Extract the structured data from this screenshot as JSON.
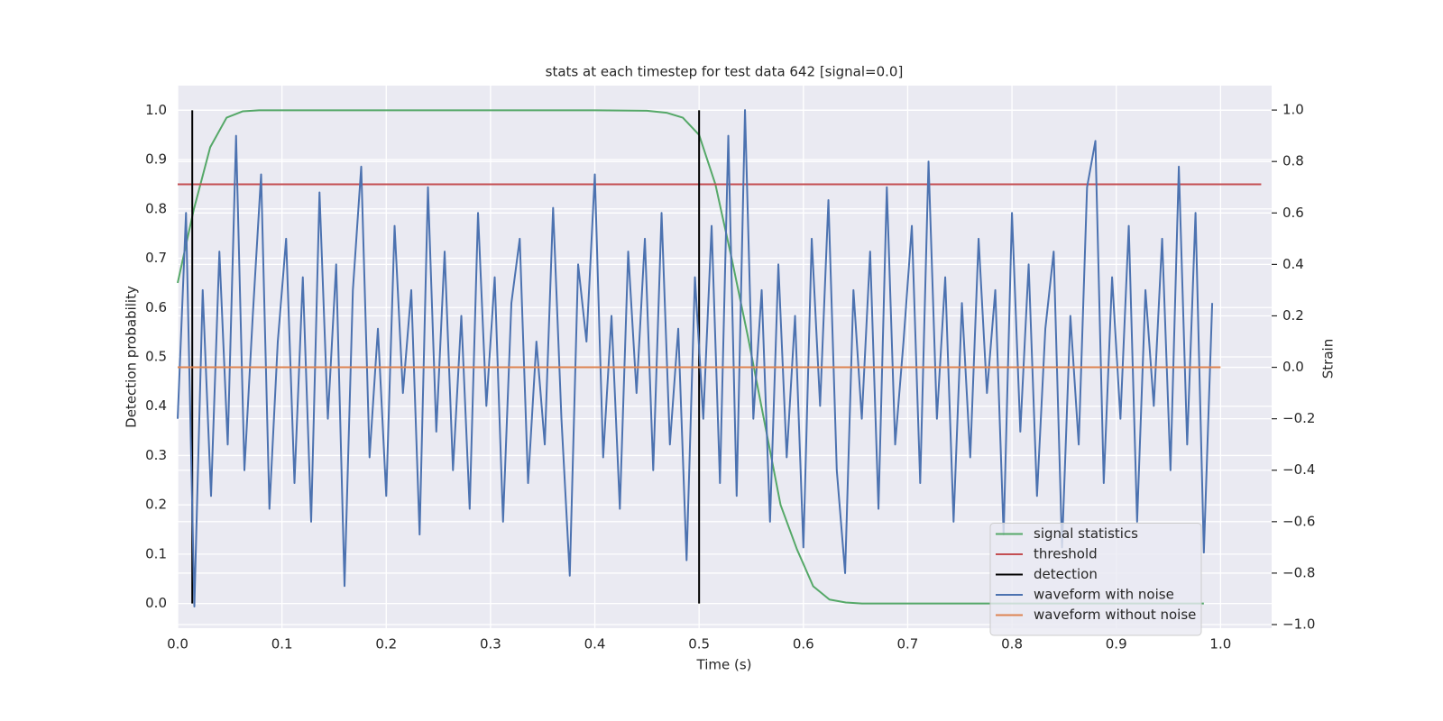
{
  "chart_data": {
    "type": "line",
    "title": "stats at each timestep for test data 642 [signal=0.0]",
    "xlabel": "Time (s)",
    "ylabel": "Detection probability",
    "y2label": "Strain",
    "xlim": [
      0,
      1.049
    ],
    "ylim": [
      -0.05,
      1.05
    ],
    "y2lim": [
      -1.014,
      1.095
    ],
    "xticks": [
      {
        "value": 0,
        "label": "0.0"
      },
      0.1,
      0.2,
      0.3,
      0.4,
      0.5,
      0.6,
      0.7,
      0.8,
      0.9,
      {
        "value": 1,
        "label": "1.0"
      }
    ],
    "yticks": [
      {
        "value": 0,
        "label": "0.0"
      },
      0.1,
      0.2,
      0.3,
      0.4,
      0.5,
      0.6,
      0.7,
      0.8,
      0.9,
      {
        "value": 1,
        "label": "1.0"
      }
    ],
    "y2ticks": [
      {
        "value": -1,
        "label": "−1.0"
      },
      {
        "value": -0.8,
        "label": "−0.8"
      },
      {
        "value": -0.6,
        "label": "−0.6"
      },
      {
        "value": -0.4,
        "label": "−0.4"
      },
      {
        "value": -0.2,
        "label": "−0.2"
      },
      {
        "value": 0,
        "label": "0.0"
      },
      0.2,
      0.4,
      0.6,
      0.8,
      {
        "value": 1,
        "label": "1.0"
      }
    ],
    "grid": true,
    "legend": "lower right",
    "series": [
      {
        "name": "signal statistics",
        "color": "#55a868",
        "x": [
          0,
          0.0156,
          0.0312,
          0.0469,
          0.0625,
          0.0781,
          0.1,
          0.2,
          0.3,
          0.4,
          0.45,
          0.4688,
          0.4844,
          0.5,
          0.5156,
          0.5312,
          0.5469,
          0.5625,
          0.5781,
          0.5938,
          0.6094,
          0.625,
          0.6406,
          0.6562,
          0.7,
          0.8,
          0.9,
          0.984
        ],
        "values": [
          0.65,
          0.8,
          0.925,
          0.985,
          0.998,
          1.0,
          1.0,
          1.0,
          1.0,
          1.0,
          0.999,
          0.995,
          0.985,
          0.95,
          0.85,
          0.7,
          0.54,
          0.37,
          0.2,
          0.11,
          0.035,
          0.008,
          0.002,
          0.0,
          0.0,
          0.0,
          0.0,
          0.0
        ]
      },
      {
        "name": "threshold",
        "color": "#c44e52",
        "x": [
          0,
          1.039
        ],
        "values": [
          0.85,
          0.85
        ]
      },
      {
        "name": "detection",
        "color": "#000000",
        "segments": true,
        "x": [
          0.014,
          0.014,
          0.5,
          0.5
        ],
        "values": [
          0,
          1,
          0,
          1
        ]
      },
      {
        "name": "waveform with noise",
        "color": "#4c72b0",
        "axis": "y2",
        "x": [
          0,
          0.008,
          0.016,
          0.024,
          0.032,
          0.04,
          0.048,
          0.056,
          0.064,
          0.072,
          0.08,
          0.088,
          0.096,
          0.104,
          0.112,
          0.12,
          0.128,
          0.136,
          0.144,
          0.152,
          0.16,
          0.168,
          0.176,
          0.184,
          0.192,
          0.2,
          0.208,
          0.216,
          0.224,
          0.232,
          0.24,
          0.248,
          0.256,
          0.264,
          0.272,
          0.28,
          0.288,
          0.296,
          0.304,
          0.312,
          0.32,
          0.328,
          0.336,
          0.344,
          0.352,
          0.36,
          0.368,
          0.376,
          0.384,
          0.392,
          0.4,
          0.408,
          0.416,
          0.424,
          0.432,
          0.44,
          0.448,
          0.456,
          0.464,
          0.472,
          0.48,
          0.488,
          0.496,
          0.504,
          0.512,
          0.52,
          0.528,
          0.536,
          0.544,
          0.552,
          0.56,
          0.568,
          0.576,
          0.584,
          0.592,
          0.6,
          0.608,
          0.616,
          0.624,
          0.632,
          0.64,
          0.648,
          0.656,
          0.664,
          0.672,
          0.68,
          0.688,
          0.696,
          0.704,
          0.712,
          0.72,
          0.728,
          0.736,
          0.744,
          0.752,
          0.76,
          0.768,
          0.776,
          0.784,
          0.792,
          0.8,
          0.808,
          0.816,
          0.824,
          0.832,
          0.84,
          0.848,
          0.856,
          0.864,
          0.872,
          0.88,
          0.888,
          0.896,
          0.904,
          0.912,
          0.92,
          0.928,
          0.936,
          0.944,
          0.952,
          0.96,
          0.968,
          0.976,
          0.984,
          0.992
        ],
        "values": [
          -0.2,
          0.6,
          -0.93,
          0.3,
          -0.5,
          0.45,
          -0.3,
          0.9,
          -0.4,
          0.2,
          0.75,
          -0.55,
          0.1,
          0.5,
          -0.45,
          0.35,
          -0.6,
          0.68,
          -0.2,
          0.4,
          -0.85,
          0.3,
          0.78,
          -0.35,
          0.15,
          -0.5,
          0.55,
          -0.1,
          0.3,
          -0.65,
          0.7,
          -0.25,
          0.45,
          -0.4,
          0.2,
          -0.55,
          0.6,
          -0.15,
          0.35,
          -0.6,
          0.25,
          0.5,
          -0.45,
          0.1,
          -0.3,
          0.62,
          -0.2,
          -0.81,
          0.4,
          0.1,
          0.75,
          -0.35,
          0.2,
          -0.55,
          0.45,
          -0.1,
          0.5,
          -0.4,
          0.6,
          -0.3,
          0.15,
          -0.75,
          0.35,
          -0.2,
          0.55,
          -0.45,
          0.9,
          -0.5,
          1.0,
          -0.2,
          0.3,
          -0.6,
          0.4,
          -0.35,
          0.2,
          -0.7,
          0.5,
          -0.15,
          0.65,
          -0.4,
          -0.8,
          0.3,
          -0.2,
          0.45,
          -0.55,
          0.7,
          -0.3,
          0.1,
          0.55,
          -0.45,
          0.8,
          -0.2,
          0.35,
          -0.6,
          0.25,
          -0.35,
          0.5,
          -0.1,
          0.3,
          -0.65,
          0.6,
          -0.25,
          0.4,
          -0.5,
          0.15,
          0.45,
          -0.7,
          0.2,
          -0.3,
          0.7,
          0.88,
          -0.45,
          0.35,
          -0.2,
          0.55,
          -0.6,
          0.3,
          -0.15,
          0.5,
          -0.4,
          0.78,
          -0.3,
          0.6,
          -0.72,
          0.25
        ]
      },
      {
        "name": "waveform without noise",
        "color": "#dd8452",
        "axis": "y2",
        "x": [
          0,
          1.0
        ],
        "values": [
          0,
          0
        ]
      }
    ]
  }
}
